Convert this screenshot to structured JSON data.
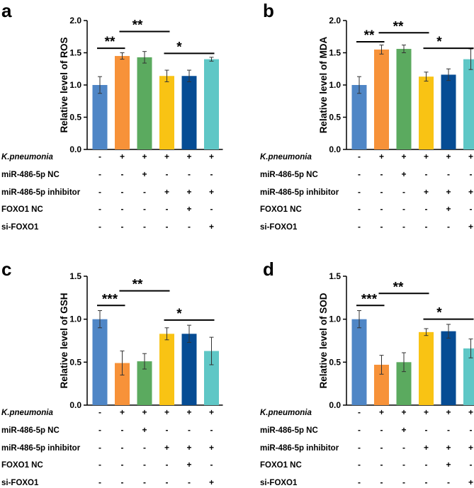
{
  "colors": [
    "#4F86C6",
    "#F79239",
    "#5BAA5F",
    "#F9C314",
    "#064C94",
    "#5FC7C6"
  ],
  "table_rows": [
    {
      "label": "K.pneumonia",
      "italic": true,
      "signs": [
        "-",
        "+",
        "+",
        "+",
        "+",
        "+"
      ]
    },
    {
      "label": "miR-486-5p NC",
      "italic": false,
      "signs": [
        "-",
        "-",
        "+",
        "-",
        "-",
        "-"
      ]
    },
    {
      "label": "miR-486-5p inhibitor",
      "italic": false,
      "signs": [
        "-",
        "-",
        "-",
        "+",
        "+",
        "+"
      ]
    },
    {
      "label": "FOXO1 NC",
      "italic": false,
      "signs": [
        "-",
        "-",
        "-",
        "-",
        "+",
        "-"
      ]
    },
    {
      "label": "si-FOXO1",
      "italic": false,
      "signs": [
        "-",
        "-",
        "-",
        "-",
        "-",
        "+"
      ]
    }
  ],
  "chart_data": [
    {
      "panel": "a",
      "type": "bar",
      "ylabel": "Relative level of ROS",
      "ylim": [
        0,
        2.0
      ],
      "yticks": [
        0.0,
        0.5,
        1.0,
        1.5,
        2.0
      ],
      "ytick_labels": [
        "0.0",
        "0.5",
        "1.0",
        "1.5",
        "2.0"
      ],
      "values": [
        1.0,
        1.45,
        1.43,
        1.14,
        1.14,
        1.4
      ],
      "errors": [
        0.13,
        0.05,
        0.09,
        0.09,
        0.09,
        0.03
      ],
      "significance": [
        {
          "from": 0,
          "to": 1,
          "y": 1.57,
          "label": "**"
        },
        {
          "from": 1,
          "to": 3,
          "y": 1.83,
          "label": "**"
        },
        {
          "from": 3,
          "to": 5,
          "y": 1.49,
          "label": "*"
        }
      ]
    },
    {
      "panel": "b",
      "type": "bar",
      "ylabel": "Relative level of MDA",
      "ylim": [
        0,
        2.0
      ],
      "yticks": [
        0.0,
        0.5,
        1.0,
        1.5,
        2.0
      ],
      "ytick_labels": [
        "0.0",
        "0.5",
        "1.0",
        "1.5",
        "2.0"
      ],
      "values": [
        1.0,
        1.55,
        1.56,
        1.13,
        1.16,
        1.4
      ],
      "errors": [
        0.13,
        0.07,
        0.06,
        0.07,
        0.09,
        0.16
      ],
      "significance": [
        {
          "from": 0,
          "to": 1,
          "y": 1.67,
          "label": "**"
        },
        {
          "from": 1,
          "to": 3,
          "y": 1.81,
          "label": "**"
        },
        {
          "from": 3,
          "to": 5,
          "y": 1.57,
          "label": "*"
        }
      ]
    },
    {
      "panel": "c",
      "type": "bar",
      "ylabel": "Relative level of GSH",
      "ylim": [
        0,
        1.5
      ],
      "yticks": [
        0.0,
        0.5,
        1.0,
        1.5
      ],
      "ytick_labels": [
        "0.0",
        "0.5",
        "1.0",
        "1.5"
      ],
      "values": [
        1.0,
        0.49,
        0.51,
        0.83,
        0.83,
        0.63
      ],
      "errors": [
        0.1,
        0.14,
        0.09,
        0.07,
        0.1,
        0.16
      ],
      "significance": [
        {
          "from": 0,
          "to": 1,
          "y": 1.16,
          "label": "***"
        },
        {
          "from": 1,
          "to": 3,
          "y": 1.33,
          "label": "**"
        },
        {
          "from": 3,
          "to": 5,
          "y": 0.99,
          "label": "*"
        }
      ]
    },
    {
      "panel": "d",
      "type": "bar",
      "ylabel": "Relative level of SOD",
      "ylim": [
        0,
        1.5
      ],
      "yticks": [
        0.0,
        0.5,
        1.0,
        1.5
      ],
      "ytick_labels": [
        "0.0",
        "0.5",
        "1.0",
        "1.5"
      ],
      "values": [
        1.0,
        0.47,
        0.5,
        0.85,
        0.86,
        0.66
      ],
      "errors": [
        0.1,
        0.11,
        0.11,
        0.04,
        0.08,
        0.11
      ],
      "significance": [
        {
          "from": 0,
          "to": 1,
          "y": 1.16,
          "label": "***"
        },
        {
          "from": 1,
          "to": 3,
          "y": 1.3,
          "label": "**"
        },
        {
          "from": 3,
          "to": 5,
          "y": 1.0,
          "label": "*"
        }
      ]
    }
  ]
}
